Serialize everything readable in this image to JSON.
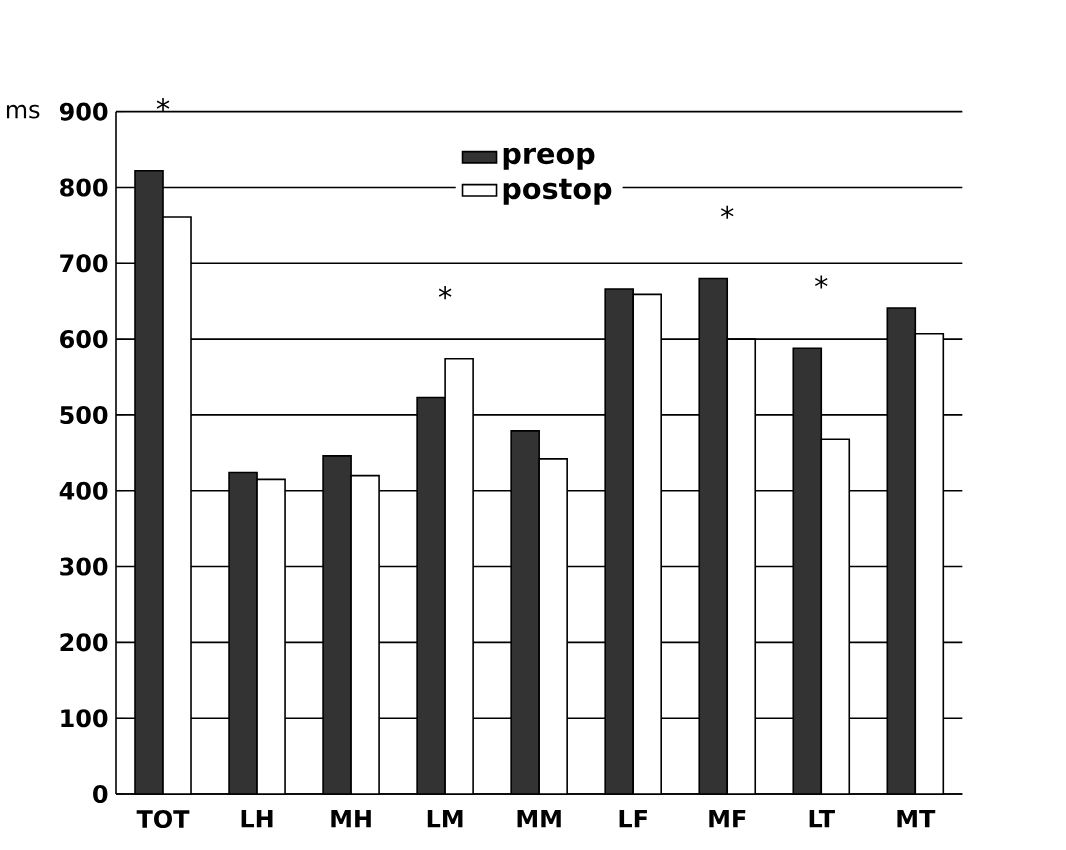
{
  "chart_data": {
    "type": "bar",
    "ylabel": "ms",
    "categories": [
      "TOT",
      "LH",
      "MH",
      "LM",
      "MM",
      "LF",
      "MF",
      "LT",
      "MT"
    ],
    "series": [
      {
        "name": "preop",
        "color": "#333333",
        "values": [
          822,
          424,
          446,
          523,
          479,
          666,
          680,
          588,
          641
        ]
      },
      {
        "name": "postop",
        "color": "#ffffff",
        "values": [
          761,
          415,
          420,
          574,
          442,
          659,
          600,
          468,
          607
        ]
      }
    ],
    "ylim": [
      0,
      900
    ],
    "yticks": [
      0,
      100,
      200,
      300,
      400,
      500,
      600,
      700,
      800,
      900
    ],
    "grid": "y",
    "legend": "top",
    "annotations": [
      {
        "text": "*",
        "x": "TOT",
        "y": 822
      },
      {
        "text": "*",
        "x": "LM",
        "y": 574
      },
      {
        "text": "*",
        "x": "MF",
        "y": 680
      },
      {
        "text": "*",
        "x": "LT",
        "y": 588
      }
    ]
  }
}
